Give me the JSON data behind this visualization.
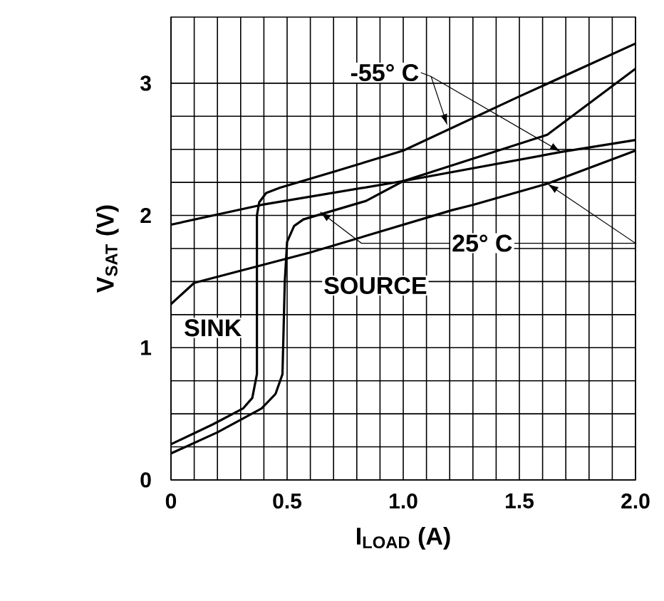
{
  "chart_data": {
    "type": "line",
    "xlabel": "I$_{LOAD}$  (A)",
    "ylabel": "V$_{SAT}$ (V)",
    "xlim": [
      0,
      2.0
    ],
    "ylim": [
      0,
      3.5
    ],
    "xticks": [
      0,
      0.5,
      {
        "value": 1,
        "label": "1.0"
      },
      1.5,
      {
        "value": 2,
        "label": "2.0"
      }
    ],
    "yticks": [
      0,
      1,
      2,
      3
    ],
    "grid": true,
    "marker": "none",
    "annotations": [
      {
        "text": "-55° C",
        "x": 1.19,
        "y": 2.68
      },
      {
        "text": "25° C",
        "x": 0.64,
        "y": 2.03
      },
      "SOURCE",
      "SINK"
    ],
    "series": [
      {
        "color": "#000000",
        "x": [
          0,
          0.18,
          0.31,
          0.35,
          0.37,
          0.37,
          0.38,
          0.41,
          0.47,
          0.7,
          1.0,
          1.5,
          2.0
        ],
        "values": [
          0.27,
          0.42,
          0.54,
          0.62,
          0.8,
          2.0,
          2.1,
          2.17,
          2.21,
          2.33,
          2.49,
          2.9,
          3.3
        ]
      },
      {
        "color": "#000000",
        "x": [
          0,
          0.2,
          0.39,
          0.45,
          0.48,
          0.49,
          0.5,
          0.53,
          0.57,
          0.84,
          1.0,
          1.62,
          2.0
        ],
        "values": [
          0.2,
          0.36,
          0.54,
          0.65,
          0.8,
          1.5,
          1.8,
          1.92,
          1.97,
          2.11,
          2.26,
          2.61,
          3.11
        ]
      },
      {
        "color": "#000000",
        "x": [
          0,
          0.39,
          1.0,
          1.68,
          2.0
        ],
        "values": [
          1.93,
          2.08,
          2.26,
          2.48,
          2.57
        ]
      },
      {
        "color": "#000000",
        "x": [
          0,
          0.1,
          0.6,
          1.21,
          1.3,
          1.62,
          2.0
        ],
        "values": [
          1.33,
          1.49,
          1.72,
          2.04,
          2.08,
          2.24,
          2.49
        ]
      }
    ]
  }
}
